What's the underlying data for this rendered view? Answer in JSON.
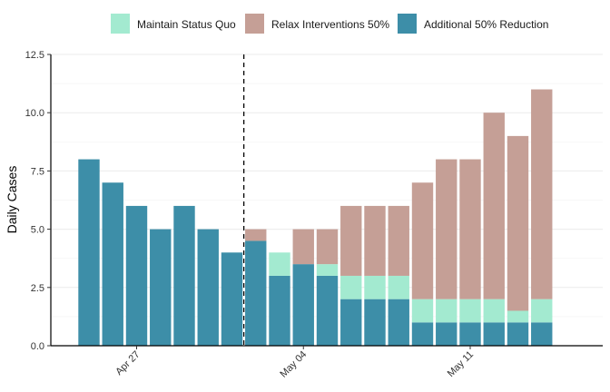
{
  "chart_data": {
    "type": "bar",
    "stacked": true,
    "title": "",
    "xlabel": "",
    "ylabel": "Daily Cases",
    "ylim": [
      0,
      12.5
    ],
    "yticks": [
      "0.0",
      "2.5",
      "5.0",
      "7.5",
      "10.0",
      "12.5"
    ],
    "xticks": [
      "Apr 27",
      "May 04",
      "May 11"
    ],
    "grid": true,
    "legend_position": "top",
    "intervention_line_between_days": [
      7,
      8
    ],
    "series": [
      {
        "name": "Additional 50% Reduction",
        "color": "#3d8ea8",
        "values": [
          8,
          7,
          6,
          5,
          6,
          5,
          4,
          4.5,
          3,
          3.5,
          3,
          2,
          2,
          2,
          1,
          1,
          1,
          1,
          1,
          1
        ]
      },
      {
        "name": "Maintain Status Quo",
        "color": "#a3ead0",
        "values": [
          0,
          0,
          0,
          0,
          0,
          0,
          0,
          0,
          1,
          0,
          0.5,
          1,
          1,
          1,
          1,
          1,
          1,
          1,
          0.5,
          1
        ]
      },
      {
        "name": "Relax Interventions 50%",
        "color": "#c59f96",
        "values": [
          0,
          0,
          0,
          0,
          0,
          0,
          0,
          0.5,
          0,
          1.5,
          1.5,
          3,
          3,
          3,
          5,
          6,
          6,
          8,
          7.5,
          9
        ]
      }
    ],
    "legend_order": [
      "Maintain Status Quo",
      "Relax Interventions 50%",
      "Additional 50% Reduction"
    ]
  }
}
